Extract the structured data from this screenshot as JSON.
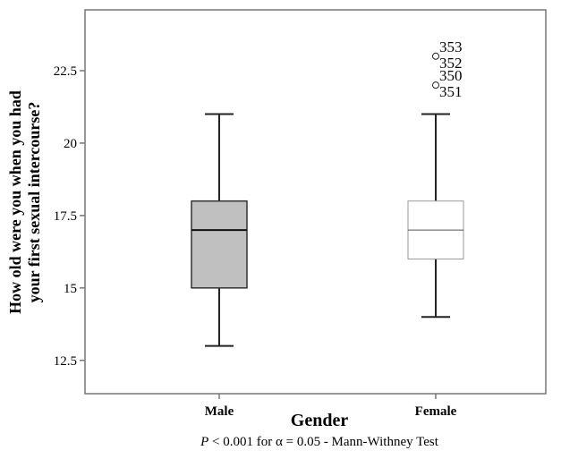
{
  "chart_data": {
    "type": "boxplot",
    "xlabel": "Gender",
    "ylabel_lines": [
      "How old were you when you had",
      "your first sexual intercourse?"
    ],
    "footnote_italic": "P",
    "footnote_rest": " < 0.001 for α = 0.05 - Mann-Withney Test",
    "categories": [
      "Male",
      "Female"
    ],
    "ylim": [
      11.35,
      24.6
    ],
    "yticks": [
      12.5,
      15,
      17.5,
      20,
      22.5
    ],
    "ytick_labels": [
      "12.5",
      "15",
      "17.5",
      "20",
      "22.5"
    ],
    "grid": false,
    "boxes": [
      {
        "category": "Male",
        "whisker_low": 13,
        "q1": 15,
        "median": 17,
        "q3": 18,
        "whisker_high": 21,
        "fill": "#c0c0c0",
        "outliers": []
      },
      {
        "category": "Female",
        "whisker_low": 14,
        "q1": 16,
        "median": 17,
        "q3": 18,
        "whisker_high": 21,
        "fill": "#ffffff",
        "outliers": [
          {
            "value": 23,
            "labels": [
              "353",
              "352"
            ]
          },
          {
            "value": 22,
            "labels": [
              "350",
              "351"
            ]
          }
        ]
      }
    ]
  }
}
